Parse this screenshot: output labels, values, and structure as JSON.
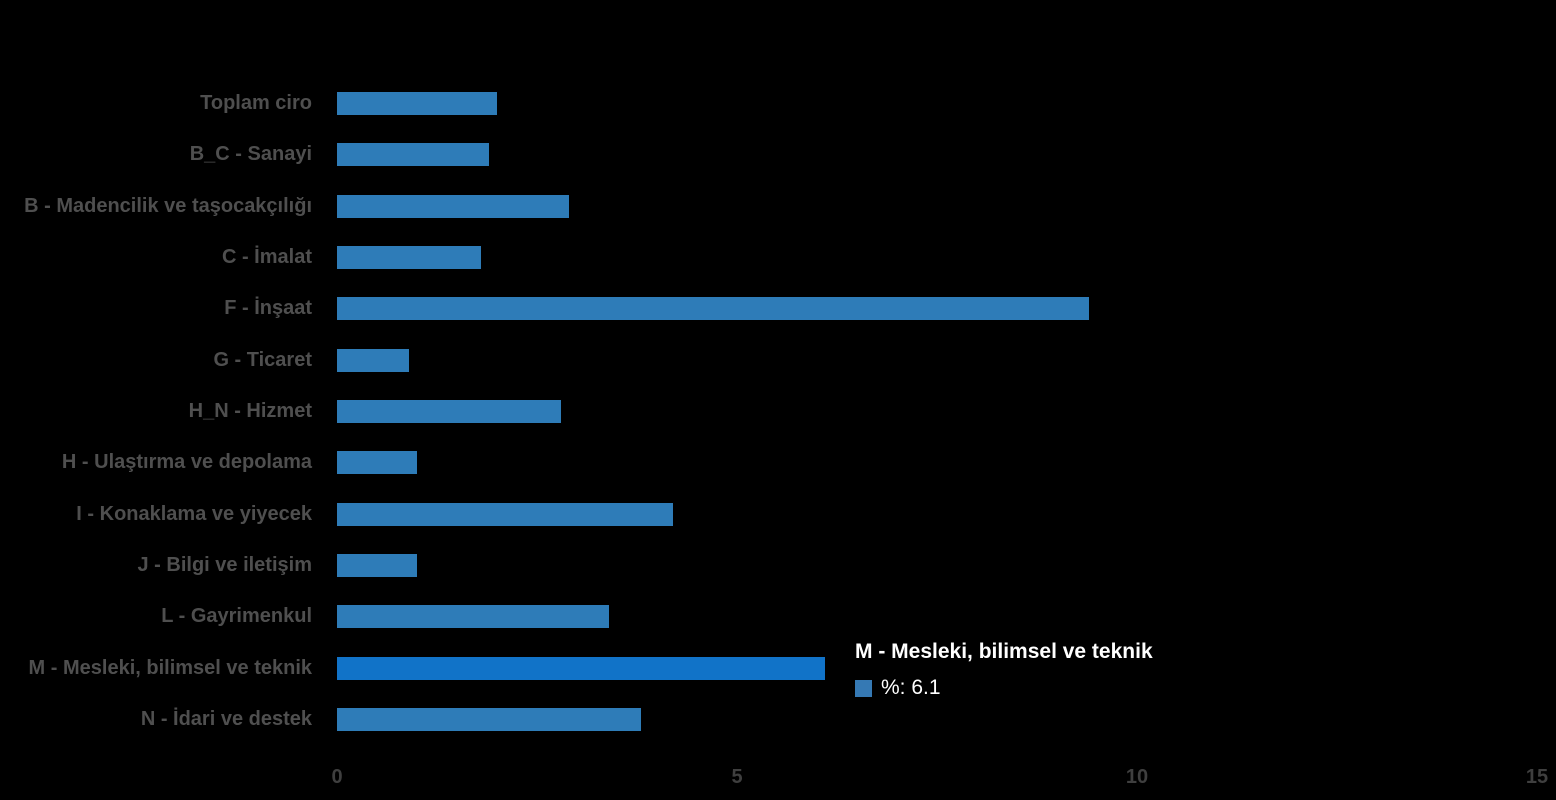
{
  "background_color": "#000000",
  "chart_data": {
    "type": "bar",
    "orientation": "horizontal",
    "title": "",
    "xlabel": "",
    "ylabel": "",
    "series_name": "%",
    "categories": [
      "Toplam ciro",
      "B_C - Sanayi",
      "B - Madencilik ve taşocakçılığı",
      "C - İmalat",
      "F - İnşaat",
      "G - Ticaret",
      "H_N - Hizmet",
      "H - Ulaştırma ve depolama",
      "I - Konaklama ve yiyecek",
      "J - Bilgi ve iletişim",
      "L - Gayrimenkul",
      "M - Mesleki, bilimsel ve teknik",
      "N - İdari ve destek"
    ],
    "values": [
      2.0,
      1.9,
      2.9,
      1.8,
      9.4,
      0.9,
      2.8,
      1.0,
      4.2,
      1.0,
      3.4,
      6.1,
      3.8
    ],
    "xlim": [
      0,
      15
    ],
    "xticks": [
      "0",
      "5",
      "10",
      "15"
    ],
    "grid": false,
    "legend_position": "none",
    "bar_color": "#2e7cb8",
    "highlight_color": "#1173c8",
    "highlighted_index": 11,
    "label_color": "#4f4f4f",
    "tick_color": "#3f3f3f"
  },
  "tooltip": {
    "title": "M - Mesleki, bilimsel ve teknik",
    "marker_color": "#3579b4",
    "value_label": "%: 6.1"
  }
}
